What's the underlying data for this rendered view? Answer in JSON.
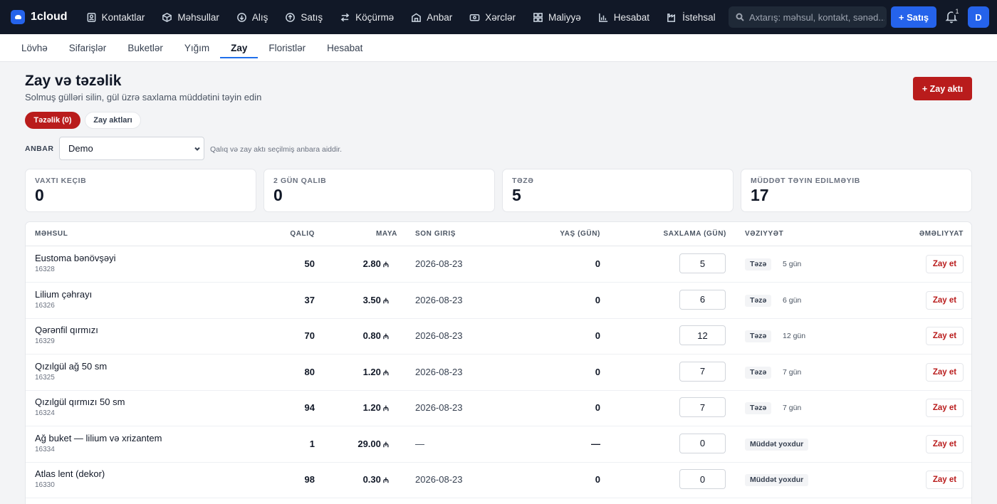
{
  "topnav": {
    "brand": "1cloud",
    "items": [
      {
        "label": "Kontaktlar",
        "icon": "contacts-icon"
      },
      {
        "label": "Məhsullar",
        "icon": "box-icon"
      },
      {
        "label": "Alış",
        "icon": "purchase-icon"
      },
      {
        "label": "Satış",
        "icon": "sales-icon"
      },
      {
        "label": "Köçürmə",
        "icon": "transfer-icon"
      },
      {
        "label": "Anbar",
        "icon": "warehouse-icon"
      },
      {
        "label": "Xərclər",
        "icon": "expenses-icon"
      },
      {
        "label": "Maliyyə",
        "icon": "finance-icon"
      },
      {
        "label": "Hesabat",
        "icon": "report-icon"
      },
      {
        "label": "İstehsal",
        "icon": "production-icon"
      }
    ],
    "search_placeholder": "Axtarış: məhsul, kontakt, sənəd...",
    "sale_button": "+ Satış",
    "notifications_count": "1",
    "avatar_initial": "D"
  },
  "subnav": {
    "items": [
      {
        "label": "Lövhə",
        "active": false
      },
      {
        "label": "Sifarişlər",
        "active": false
      },
      {
        "label": "Buketlər",
        "active": false
      },
      {
        "label": "Yığım",
        "active": false
      },
      {
        "label": "Zay",
        "active": true
      },
      {
        "label": "Floristlər",
        "active": false
      },
      {
        "label": "Hesabat",
        "active": false
      }
    ]
  },
  "header": {
    "title": "Zay və təzəlik",
    "subtitle": "Solmuş gülləri silin, gül üzrə saxlama müddətini təyin edin",
    "act_button": "+ Zay aktı"
  },
  "tabs": {
    "active": "Təzəlik (0)",
    "other": "Zay aktları"
  },
  "warehouse": {
    "label": "ANBAR",
    "value": "Demo",
    "hint": "Qalıq və zay aktı seçilmiş anbara aiddir."
  },
  "stats": [
    {
      "label": "Vaxtı keçib",
      "value": "0"
    },
    {
      "label": "2 gün qalıb",
      "value": "0"
    },
    {
      "label": "Təzə",
      "value": "5"
    },
    {
      "label": "Müddət təyin edilməyib",
      "value": "17"
    }
  ],
  "table": {
    "headers": {
      "product": "Məhsul",
      "qty": "Qalıq",
      "cost": "Maya",
      "last_in": "Son giriş",
      "age": "Yaş (gün)",
      "keep": "Saxlama (gün)",
      "status": "Vəziyyət",
      "actions": "Əməliyyat"
    },
    "currency": "₼",
    "action_label": "Zay et",
    "rows": [
      {
        "name": "Eustoma bənövşəyi",
        "code": "16328",
        "qty": "50",
        "cost": "2.80",
        "last_in": "2026-08-23",
        "age": "0",
        "keep": "5",
        "status": "Təzə",
        "days": "5 gün"
      },
      {
        "name": "Lilium çəhrayı",
        "code": "16326",
        "qty": "37",
        "cost": "3.50",
        "last_in": "2026-08-23",
        "age": "0",
        "keep": "6",
        "status": "Təzə",
        "days": "6 gün"
      },
      {
        "name": "Qərənfil qırmızı",
        "code": "16329",
        "qty": "70",
        "cost": "0.80",
        "last_in": "2026-08-23",
        "age": "0",
        "keep": "12",
        "status": "Təzə",
        "days": "12 gün"
      },
      {
        "name": "Qızılgül ağ 50 sm",
        "code": "16325",
        "qty": "80",
        "cost": "1.20",
        "last_in": "2026-08-23",
        "age": "0",
        "keep": "7",
        "status": "Təzə",
        "days": "7 gün"
      },
      {
        "name": "Qızılgül qırmızı 50 sm",
        "code": "16324",
        "qty": "94",
        "cost": "1.20",
        "last_in": "2026-08-23",
        "age": "0",
        "keep": "7",
        "status": "Təzə",
        "days": "7 gün"
      },
      {
        "name": "Ağ buket — lilium və xrizantem",
        "code": "16334",
        "qty": "1",
        "cost": "29.00",
        "last_in": "—",
        "age": "—",
        "keep": "0",
        "status": "Müddət yoxdur",
        "days": ""
      },
      {
        "name": "Atlas lent (dekor)",
        "code": "16330",
        "qty": "98",
        "cost": "0.30",
        "last_in": "2026-08-23",
        "age": "0",
        "keep": "0",
        "status": "Müddət yoxdur",
        "days": ""
      }
    ]
  }
}
